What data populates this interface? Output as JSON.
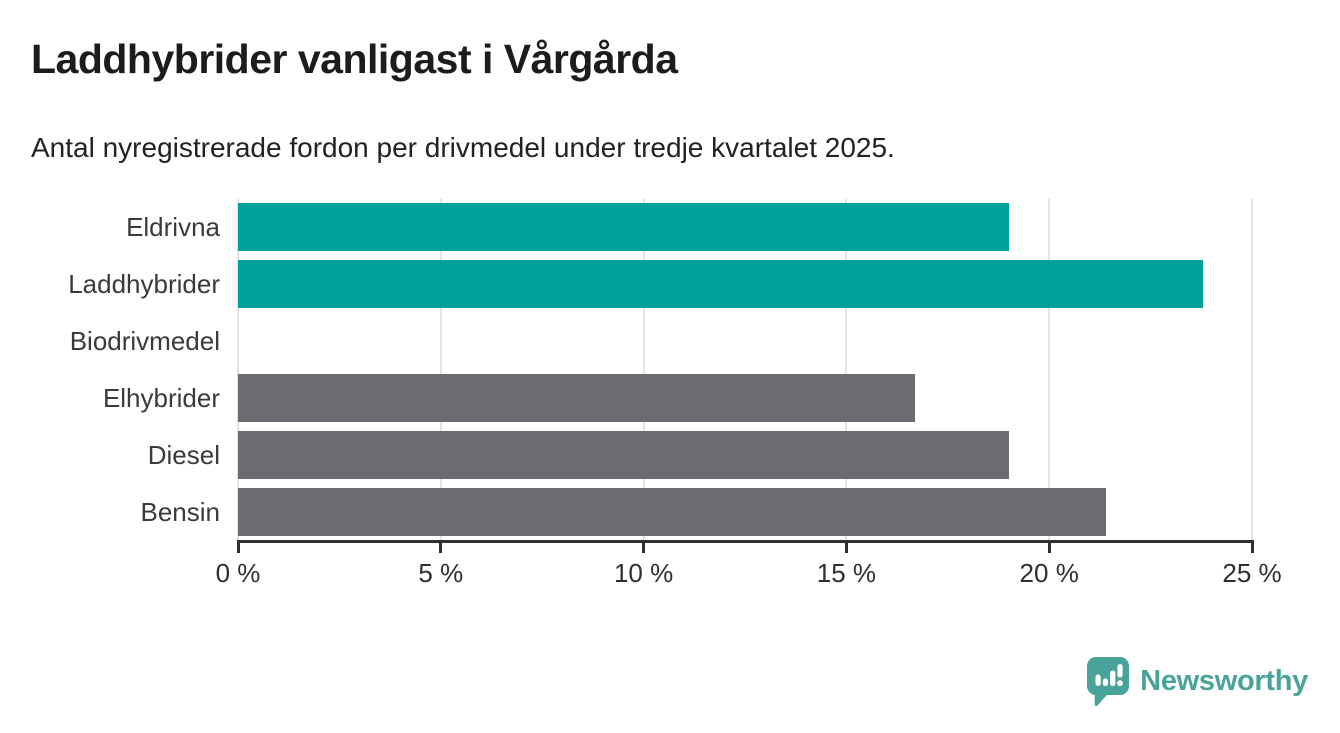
{
  "header": {
    "title": "Laddhybrider vanligast i Vårgårda",
    "subtitle": "Antal nyregistrerade fordon per drivmedel under tredje kvartalet 2025."
  },
  "chart_data": {
    "type": "bar",
    "orientation": "horizontal",
    "title": "Laddhybrider vanligast i Vårgårda",
    "subtitle": "Antal nyregistrerade fordon per drivmedel under tredje kvartalet 2025.",
    "categories": [
      "Eldrivna",
      "Laddhybrider",
      "Biodrivmedel",
      "Elhybrider",
      "Diesel",
      "Bensin"
    ],
    "values": [
      19.0,
      23.8,
      0,
      16.7,
      19.0,
      21.4
    ],
    "unit": "%",
    "bar_colors": [
      "#00a09a",
      "#00a09a",
      "#6c6c70",
      "#6c6c70",
      "#6c6c70",
      "#6c6c70"
    ],
    "highlight_color": "#00a09a",
    "default_color": "#6c6c70",
    "xlabel": "",
    "ylabel": "",
    "xlim": [
      0,
      25
    ],
    "xticks": [
      0,
      5,
      10,
      15,
      20,
      25
    ],
    "xtick_labels": [
      "0 %",
      "5 %",
      "10 %",
      "15 %",
      "20 %",
      "25 %"
    ],
    "grid": true,
    "legend": false
  },
  "colors": {
    "teal": "#00a09a",
    "gray": "#6c6c70",
    "gridline": "#e4e4e4",
    "axis": "#2f2f2f",
    "title_text": "#1c1c1c",
    "label_text": "#3a3a3a",
    "logo_teal": "#4aa39b"
  },
  "footer": {
    "brand": "Newsworthy"
  }
}
